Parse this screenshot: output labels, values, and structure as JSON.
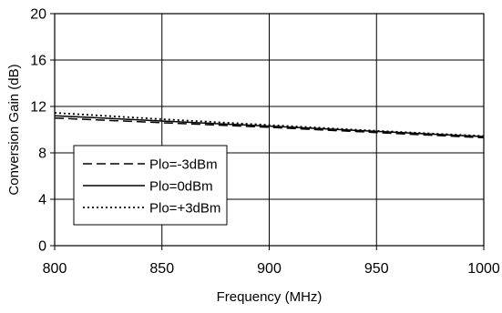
{
  "chart_data": {
    "type": "line",
    "xlabel": "Frequency (MHz)",
    "ylabel": "Conversion Gain (dB)",
    "xlim": [
      800,
      1000
    ],
    "ylim": [
      0,
      20
    ],
    "x_ticks": [
      800,
      850,
      900,
      950,
      1000
    ],
    "y_ticks": [
      0,
      4,
      8,
      12,
      16,
      20
    ],
    "x_tick_labels": [
      "800",
      "850",
      "900",
      "950",
      "1000"
    ],
    "y_tick_labels": [
      "0",
      "4",
      "8",
      "12",
      "16",
      "20"
    ],
    "grid": true,
    "legend_position": "bottom-left",
    "series": [
      {
        "name": "Plo=-3dBm",
        "line_style": "long-dash",
        "color": "#000000",
        "x": [
          800,
          850,
          900,
          950,
          1000
        ],
        "y": [
          11.0,
          10.6,
          10.2,
          9.75,
          9.3
        ]
      },
      {
        "name": "Plo=0dBm",
        "line_style": "solid",
        "color": "#000000",
        "x": [
          800,
          850,
          900,
          950,
          1000
        ],
        "y": [
          11.2,
          10.75,
          10.3,
          9.85,
          9.4
        ]
      },
      {
        "name": "Plo=+3dBm",
        "line_style": "dotted",
        "color": "#000000",
        "x": [
          800,
          850,
          900,
          950,
          1000
        ],
        "y": [
          11.45,
          10.9,
          10.4,
          9.9,
          9.45
        ]
      }
    ]
  }
}
